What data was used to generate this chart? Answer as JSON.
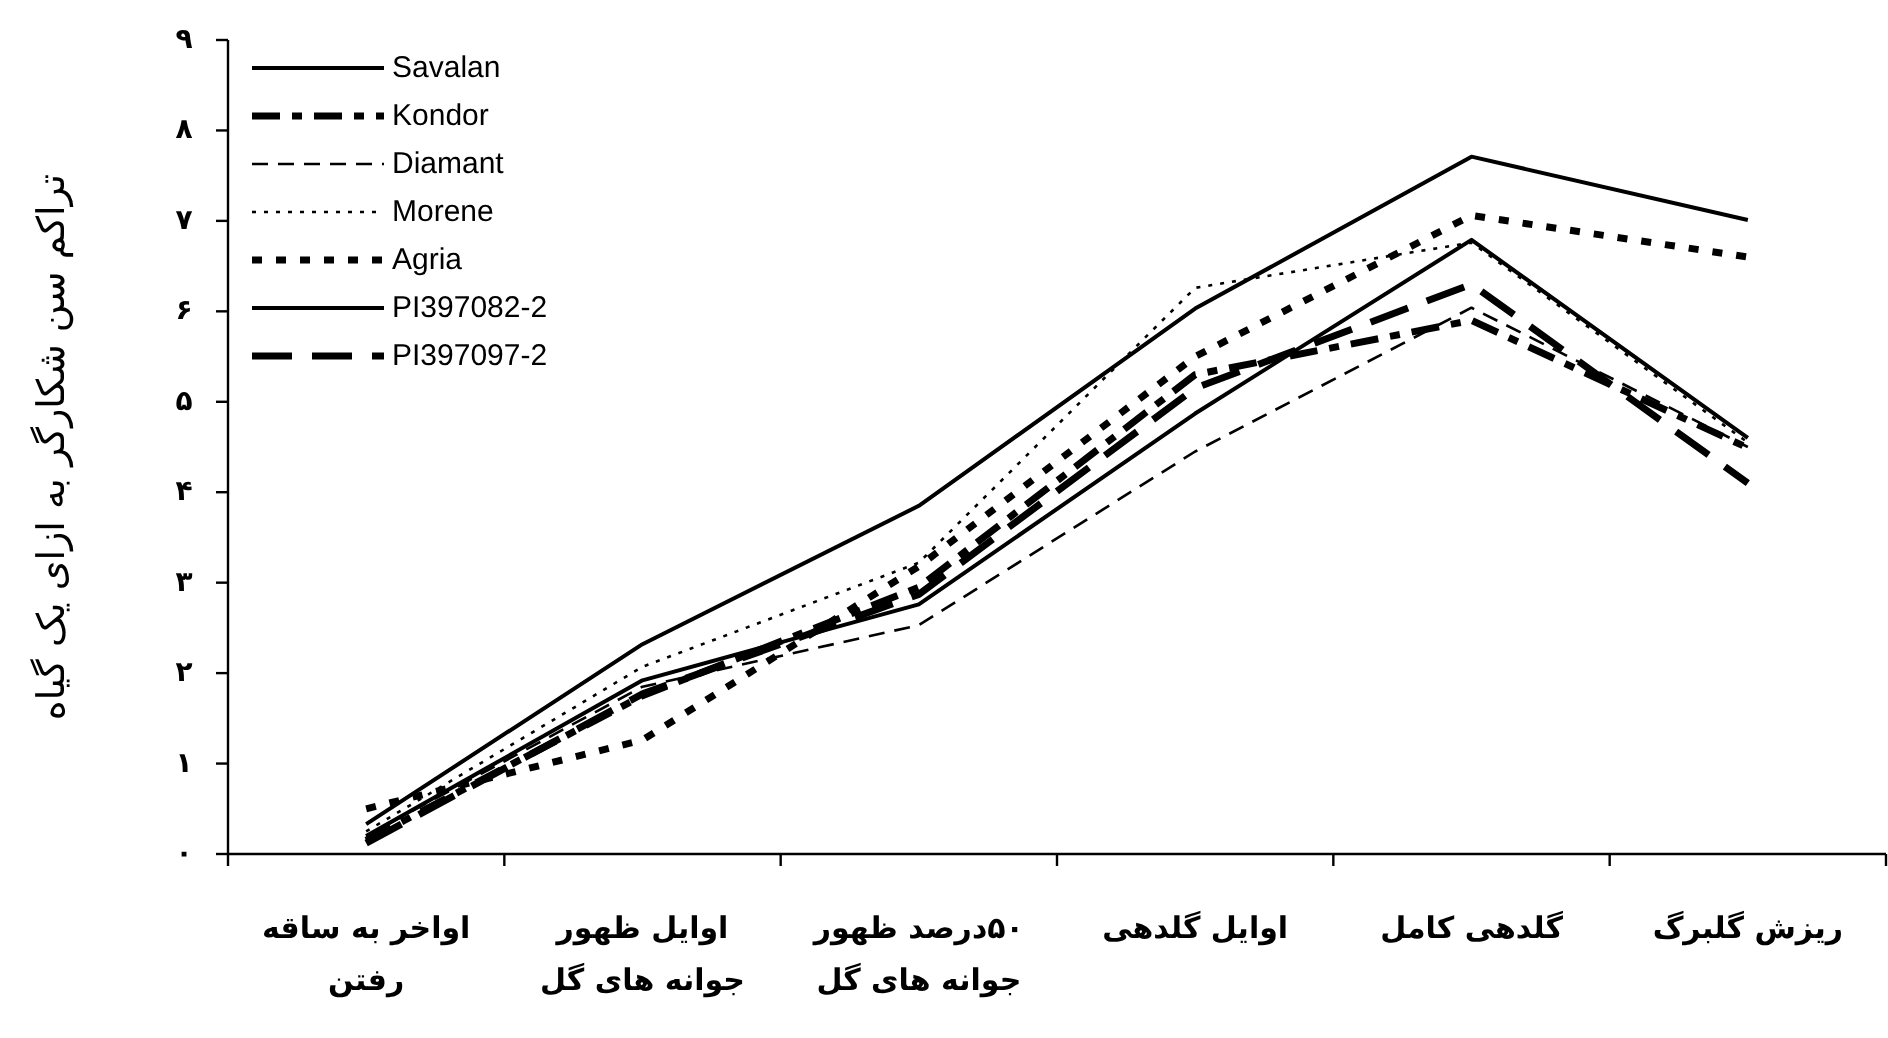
{
  "chart_data": {
    "type": "line",
    "ylabel": "تراکم سن شکارگر به ازای یک گیاه",
    "categories": [
      "اواخر به ساقه رفتن",
      "اوایل ظهور جوانه های گل",
      "۵۰درصد ظهور جوانه های گل",
      "اوایل گلدهی",
      "گلدهی کامل",
      "ریزش گلبرگ"
    ],
    "series": [
      {
        "name": "Savalan",
        "color": "#000000",
        "line_style": "solid",
        "values": [
          0.33,
          2.32,
          3.85,
          6.03,
          7.71,
          7.01
        ]
      },
      {
        "name": "Kondor",
        "color": "#000000",
        "line_style": "dashdot",
        "values": [
          0.15,
          1.75,
          2.95,
          5.3,
          5.9,
          4.49
        ]
      },
      {
        "name": "Diamant",
        "color": "#000000",
        "line_style": "dashed",
        "values": [
          0.2,
          1.85,
          2.53,
          4.45,
          6.04,
          4.5
        ]
      },
      {
        "name": "Morene",
        "color": "#000000",
        "line_style": "dotted",
        "values": [
          0.25,
          2.07,
          3.22,
          6.26,
          6.76,
          4.55
        ]
      },
      {
        "name": "Agria",
        "color": "#000000",
        "line_style": "bold-dotted",
        "values": [
          0.5,
          1.26,
          3.18,
          5.5,
          7.06,
          6.6
        ]
      },
      {
        "name": "PI397082-2",
        "color": "#000000",
        "line_style": "solid",
        "values": [
          0.2,
          1.92,
          2.76,
          4.87,
          6.79,
          4.6
        ]
      },
      {
        "name": "PI397097-2",
        "color": "#000000",
        "line_style": "longdash",
        "values": [
          0.12,
          1.77,
          2.87,
          5.15,
          6.3,
          4.1
        ]
      }
    ],
    "ylim": [
      0,
      9
    ],
    "yticks": [
      {
        "value": 0,
        "label": "۰"
      },
      {
        "value": 1,
        "label": "۱"
      },
      {
        "value": 2,
        "label": "۲"
      },
      {
        "value": 3,
        "label": "۳"
      },
      {
        "value": 4,
        "label": "۴"
      },
      {
        "value": 5,
        "label": "۵"
      },
      {
        "value": 6,
        "label": "۶"
      },
      {
        "value": 7,
        "label": "۷"
      },
      {
        "value": 8,
        "label": "۸"
      },
      {
        "value": 9,
        "label": "۹"
      }
    ],
    "legend": "top left",
    "grid": false,
    "marker": "none"
  }
}
